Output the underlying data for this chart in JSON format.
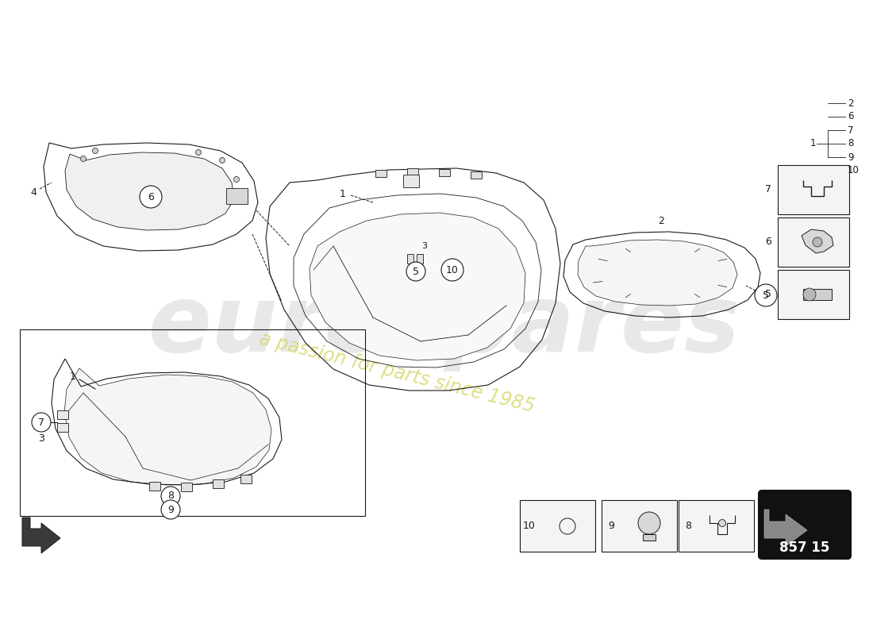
{
  "bg_color": "#ffffff",
  "line_color": "#1a1a1a",
  "watermark_text1": "eurospares",
  "watermark_text2": "a passion for parts since 1985",
  "watermark_color1": "#d0d0d0",
  "watermark_color2": "#e0e060",
  "part_number_box": "857 15"
}
